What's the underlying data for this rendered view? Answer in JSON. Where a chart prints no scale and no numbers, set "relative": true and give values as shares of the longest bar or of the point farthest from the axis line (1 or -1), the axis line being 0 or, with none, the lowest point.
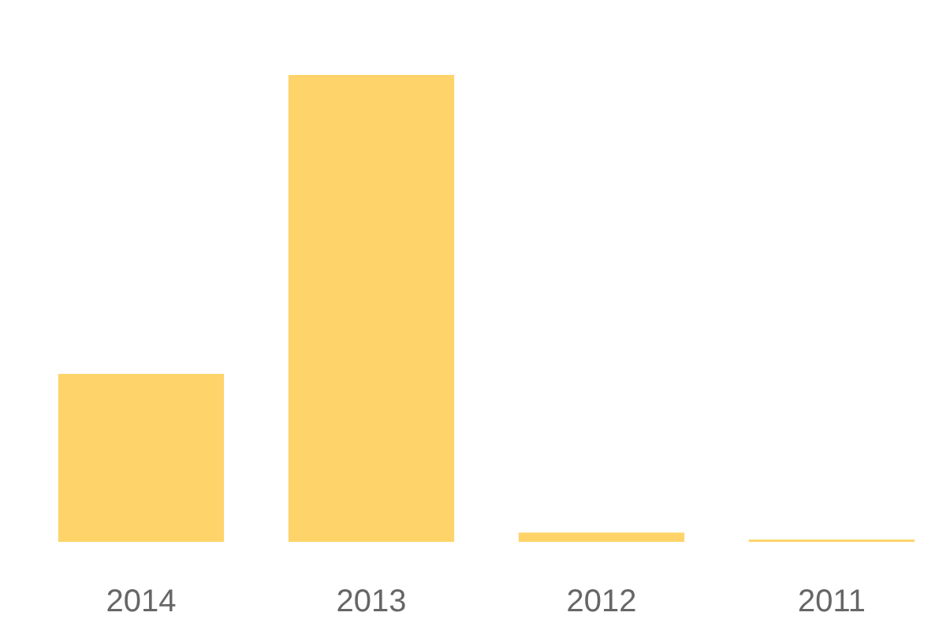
{
  "chart_data": {
    "type": "bar",
    "relative": true,
    "categories": [
      "2014",
      "2013",
      "2012",
      "2011"
    ],
    "values": [
      0.36,
      1,
      0.02,
      0.005
    ],
    "color": "#fed46a",
    "grid": false
  }
}
